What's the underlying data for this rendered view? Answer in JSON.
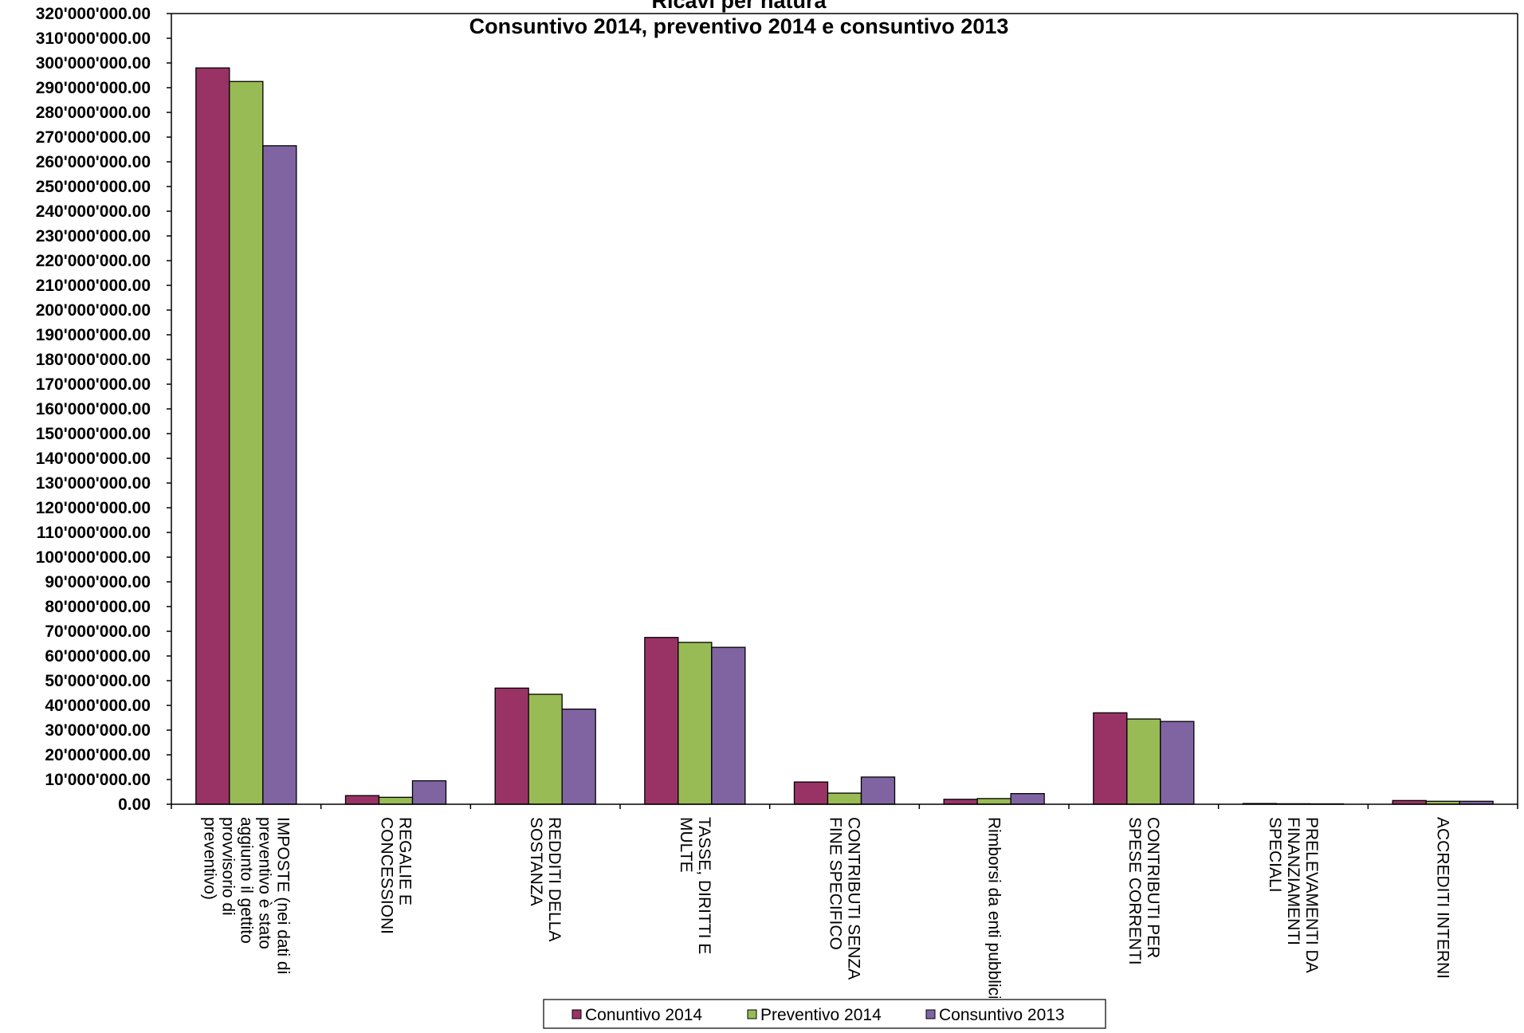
{
  "chart_data": {
    "type": "bar",
    "title_line1": "Ricavi per natura",
    "title_line2": "Consuntivo 2014,  preventivo 2014 e consuntivo 2013",
    "xlabel": "",
    "ylabel": "",
    "ylim": [
      0,
      320000000
    ],
    "ytick_step": 10000000,
    "y_tick_labels": [
      "0.00",
      "10'000'000.00",
      "20'000'000.00",
      "30'000'000.00",
      "40'000'000.00",
      "50'000'000.00",
      "60'000'000.00",
      "70'000'000.00",
      "80'000'000.00",
      "90'000'000.00",
      "100'000'000.00",
      "110'000'000.00",
      "120'000'000.00",
      "130'000'000.00",
      "140'000'000.00",
      "150'000'000.00",
      "160'000'000.00",
      "170'000'000.00",
      "180'000'000.00",
      "190'000'000.00",
      "200'000'000.00",
      "210'000'000.00",
      "220'000'000.00",
      "230'000'000.00",
      "240'000'000.00",
      "250'000'000.00",
      "260'000'000.00",
      "270'000'000.00",
      "280'000'000.00",
      "290'000'000.00",
      "300'000'000.00",
      "310'000'000.00",
      "320'000'000.00"
    ],
    "categories": [
      "IMPOSTE (nei dati di preventivo è stato aggiunto il gettito provvisorio di preventivo)",
      "REGALIE E CONCESSIONI",
      "REDDITI DELLA SOSTANZA",
      "TASSE, DIRITTI E MULTE",
      "CONTRIBUTI SENZA FINE SPECIFICO",
      "Rimborsi da enti pubblici",
      "CONTRIBUTI PER SPESE CORRENTI",
      "PRELEVAMENTI DA FINANZIAMENTI SPECIALI",
      "ACCREDITI INTERNI"
    ],
    "category_label_lines": [
      [
        "IMPOSTE (nei dati di",
        "preventivo è stato",
        "aggiunto il gettito",
        "provvisorio di",
        "preventivo)"
      ],
      [
        "REGALIE E",
        "CONCESSIONI"
      ],
      [
        "REDDITI DELLA",
        "SOSTANZA"
      ],
      [
        "TASSE, DIRITTI E",
        "MULTE"
      ],
      [
        "CONTRIBUTI SENZA",
        "FINE SPECIFICO"
      ],
      [
        "Rimborsi da enti pubblici"
      ],
      [
        "CONTRIBUTI PER",
        "SPESE CORRENTI"
      ],
      [
        "PRELEVAMENTI DA",
        "FINANZIAMENTI",
        "SPECIALI"
      ],
      [
        "ACCREDITI INTERNI"
      ]
    ],
    "series": [
      {
        "name": "Conuntivo 2014",
        "color": "#993366",
        "values": [
          298000000,
          3500000,
          47000000,
          67500000,
          9000000,
          2000000,
          37000000,
          300000,
          1500000
        ]
      },
      {
        "name": "Preventivo 2014",
        "color": "#99bb55",
        "values": [
          292500000,
          2800000,
          44500000,
          65500000,
          4500000,
          2300000,
          34500000,
          200000,
          1200000
        ]
      },
      {
        "name": "Consuntivo 2013",
        "color": "#8064a2",
        "values": [
          266500000,
          9500000,
          38500000,
          63500000,
          11000000,
          4300000,
          33500000,
          100000,
          1200000
        ]
      }
    ],
    "grid": false,
    "legend_position": "bottom"
  }
}
